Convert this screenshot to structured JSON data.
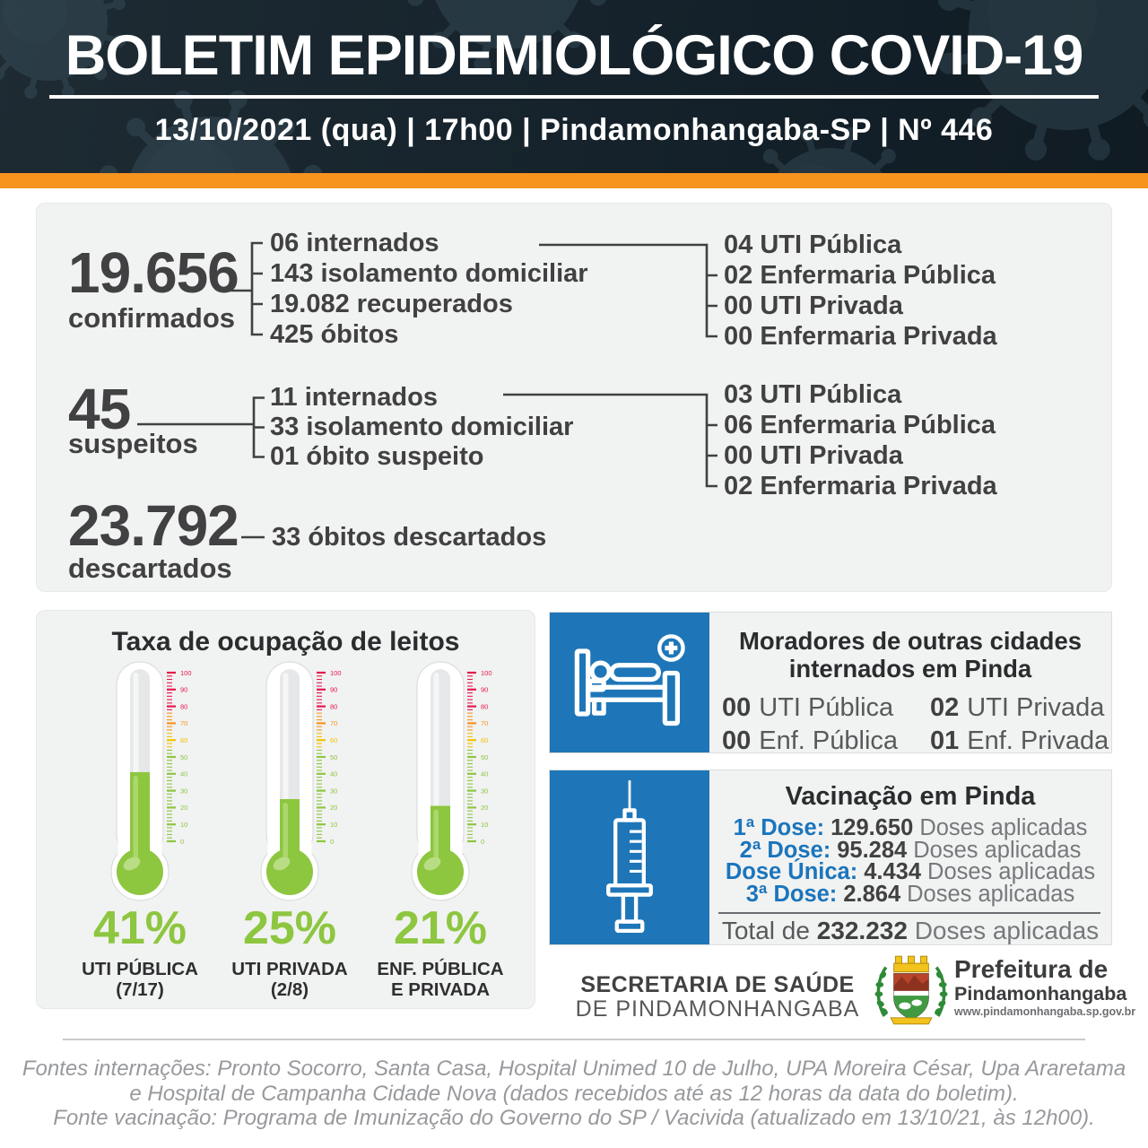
{
  "header": {
    "title": "BOLETIM EPIDEMIOLÓGICO COVID-19",
    "subtitle": "13/10/2021 (qua) | 17h00 | Pindamonhangaba-SP | Nº 446"
  },
  "cases": {
    "confirmed": {
      "value": "19.656",
      "label": "confirmados",
      "breakdown": [
        "06 internados",
        "143 isolamento domiciliar",
        "19.082 recuperados",
        "425 óbitos"
      ],
      "hospital": [
        "04 UTI Pública",
        "02 Enfermaria Pública",
        "00 UTI Privada",
        "00 Enfermaria Privada"
      ]
    },
    "suspected": {
      "value": "45",
      "label": "suspeitos",
      "breakdown": [
        "11 internados",
        "33 isolamento domiciliar",
        "01 óbito suspeito"
      ],
      "hospital": [
        "03 UTI Pública",
        "06 Enfermaria Pública",
        "00 UTI Privada",
        "02 Enfermaria Privada"
      ]
    },
    "discarded": {
      "value": "23.792",
      "label": "descartados",
      "note": "33 óbitos descartados"
    }
  },
  "occupancy": {
    "title": "Taxa de ocupação de leitos",
    "scale": {
      "min": 0,
      "max": 100,
      "label_step": 10,
      "tick_step": 2
    },
    "thermometers": [
      {
        "percent": 41,
        "percent_label": "41%",
        "label1": "UTI PÚBLICA",
        "label2": "(7/17)"
      },
      {
        "percent": 25,
        "percent_label": "25%",
        "label1": "UTI PRIVADA",
        "label2": "(2/8)"
      },
      {
        "percent": 21,
        "percent_label": "21%",
        "label1": "ENF. PÚBLICA",
        "label2": "E PRIVADA"
      }
    ]
  },
  "outside_residents": {
    "title_line1": "Moradores de outras cidades",
    "title_line2": "internados em Pinda",
    "items": [
      {
        "value": "00",
        "label": "UTI Pública"
      },
      {
        "value": "02",
        "label": "UTI Privada"
      },
      {
        "value": "00",
        "label": "Enf. Pública"
      },
      {
        "value": "01",
        "label": "Enf. Privada"
      }
    ]
  },
  "vaccination": {
    "title": "Vacinação em Pinda",
    "doses": [
      {
        "label": "1ª Dose:",
        "value": "129.650",
        "suffix": "Doses aplicadas"
      },
      {
        "label": "2ª Dose:",
        "value": "95.284",
        "suffix": "Doses aplicadas"
      },
      {
        "label": "Dose Única:",
        "value": "4.434",
        "suffix": "Doses aplicadas"
      },
      {
        "label": "3ª Dose:",
        "value": "2.864",
        "suffix": "Doses aplicadas"
      }
    ],
    "total_prefix": "Total de",
    "total_value": "232.232",
    "total_suffix": "Doses aplicadas"
  },
  "footer": {
    "secretary_line1": "SECRETARIA DE SAÚDE",
    "secretary_line2": "DE PINDAMONHANGABA",
    "logo_line1": "Prefeitura de",
    "logo_line2": "Pindamonhangaba",
    "logo_url": "www.pindamonhangaba.sp.gov.br"
  },
  "sources": {
    "line1": "Fontes internações: Pronto Socorro, Santa Casa, Hospital Unimed 10 de Julho, UPA Moreira César, Upa Araretama",
    "line2": "e Hospital de Campanha Cidade Nova (dados recebidos até as 12 horas da data do boletim).",
    "line3": "Fonte vacinação: Programa de Imunização do Governo do SP / Vacivida (atualizado em 13/10/21, às 12h00)."
  },
  "colors": {
    "header_bg": "#15222b",
    "accent_orange": "#f7941e",
    "accent_blue": "#1e76b8",
    "link_blue": "#1b75bc",
    "accent_green": "#8dc63f",
    "panel_bg": "#f1f2f2",
    "text_dark": "#414042",
    "text_gray": "#58595b",
    "tick_red": "#e8174c",
    "tick_orange": "#f7941e",
    "tick_yellow": "#f0c400"
  }
}
